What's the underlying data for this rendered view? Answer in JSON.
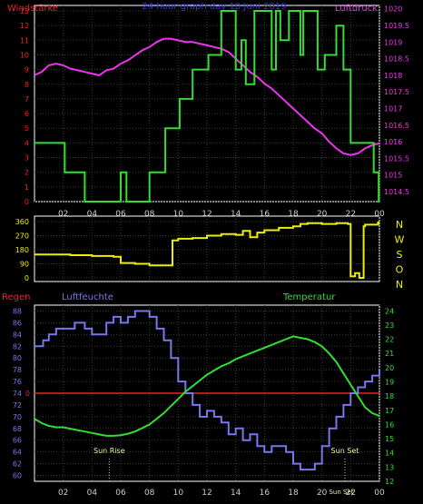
{
  "chart_data": [
    {
      "type": "line",
      "title": "24 hour graph day 10 Juni 2019",
      "left_axis_label": "Windstärke",
      "right_axis_label": "Luftdruck",
      "x_ticks": [
        "02",
        "04",
        "06",
        "08",
        "10",
        "12",
        "14",
        "16",
        "18",
        "20",
        "22",
        "00"
      ],
      "xlim": [
        0,
        24
      ],
      "left_ticks": [
        "0",
        "1",
        "2",
        "3",
        "4",
        "5",
        "6",
        "7",
        "8",
        "9",
        "10",
        "11",
        "12",
        "13"
      ],
      "left_ylim": [
        0,
        13
      ],
      "right_ticks": [
        "1014.5",
        "1015",
        "1015.5",
        "1016",
        "1016.5",
        "1017",
        "1017.5",
        "1018",
        "1018.5",
        "1019",
        "1019.5",
        "1020"
      ],
      "right_ylim": [
        1014.2,
        1020.1
      ],
      "grid": true,
      "series": [
        {
          "axis": "left",
          "color": "#33dd33",
          "step": true,
          "x": [
            0,
            2.1,
            3.5,
            5.5,
            6,
            6.4,
            7,
            8,
            9.1,
            10.1,
            11,
            12.1,
            13,
            14,
            14.4,
            14.7,
            15.3,
            15.9,
            16.5,
            16.8,
            17.1,
            17.3,
            17.7,
            18.5,
            18.7,
            19.7,
            20.2,
            21,
            21.5,
            22,
            23,
            23.6,
            23.95
          ],
          "values": [
            4,
            2,
            0,
            0,
            2,
            0,
            0,
            2,
            5,
            7,
            9,
            10,
            13,
            9,
            11,
            8,
            13,
            13,
            9,
            13,
            11,
            11,
            13,
            10,
            13,
            9,
            10,
            12,
            9,
            4,
            4,
            2,
            0
          ]
        },
        {
          "axis": "right",
          "color": "#ee33ee",
          "x": [
            0,
            0.5,
            1,
            1.5,
            2,
            2.5,
            3,
            3.5,
            4,
            4.5,
            5,
            5.5,
            6,
            6.5,
            7,
            7.5,
            8,
            8.5,
            9,
            9.5,
            10,
            10.5,
            11,
            11.5,
            12,
            12.5,
            13,
            13.5,
            14,
            14.5,
            15,
            15.5,
            16,
            16.5,
            17,
            17.5,
            18,
            18.5,
            19,
            19.5,
            20,
            20.5,
            21,
            21.5,
            22,
            22.5,
            23,
            23.5,
            24
          ],
          "values": [
            1018,
            1018.1,
            1018.3,
            1018.35,
            1018.3,
            1018.2,
            1018.15,
            1018.1,
            1018.05,
            1018.0,
            1018.15,
            1018.2,
            1018.35,
            1018.45,
            1018.6,
            1018.75,
            1018.85,
            1019.0,
            1019.1,
            1019.1,
            1019.05,
            1019.0,
            1019.0,
            1018.95,
            1018.9,
            1018.85,
            1018.8,
            1018.7,
            1018.5,
            1018.3,
            1018.1,
            1017.95,
            1017.75,
            1017.6,
            1017.4,
            1017.2,
            1017.0,
            1016.8,
            1016.6,
            1016.4,
            1016.25,
            1016.0,
            1015.8,
            1015.65,
            1015.6,
            1015.65,
            1015.8,
            1015.9,
            1015.95
          ]
        }
      ]
    },
    {
      "type": "line",
      "title": "",
      "x_ticks": [
        "02",
        "04",
        "06",
        "08",
        "10",
        "12",
        "14",
        "16",
        "18",
        "20",
        "22",
        "00"
      ],
      "xlim": [
        0,
        24
      ],
      "left_ticks": [
        "0",
        "90",
        "180",
        "270",
        "360"
      ],
      "left_ylim": [
        0,
        360
      ],
      "right_ticks": [
        "N",
        "W",
        "S",
        "O",
        "N"
      ],
      "grid": true,
      "series": [
        {
          "axis": "left",
          "color": "#eeee00",
          "step": true,
          "x": [
            0,
            2.5,
            4,
            5.5,
            6,
            7,
            8,
            9,
            9.6,
            10,
            11,
            12,
            13,
            14,
            14.5,
            15,
            15.5,
            16,
            17,
            18,
            18.5,
            19,
            20,
            21,
            21.8,
            22,
            22.3,
            22.6,
            22.9,
            23,
            23.9
          ],
          "values": [
            150,
            145,
            140,
            135,
            95,
            90,
            80,
            80,
            240,
            250,
            255,
            270,
            280,
            275,
            300,
            260,
            290,
            305,
            320,
            330,
            345,
            350,
            345,
            350,
            345,
            10,
            30,
            0,
            330,
            340,
            355
          ]
        }
      ]
    },
    {
      "type": "line",
      "title": "",
      "left_axis_label": "Regen",
      "humidity_label": "Luftfeuchte",
      "right_axis_label": "Temperatur",
      "x_ticks": [
        "02",
        "04",
        "06",
        "08",
        "10",
        "12",
        "14",
        "16",
        "18",
        "20",
        "22",
        "00"
      ],
      "xlim": [
        0,
        24
      ],
      "humidity_ticks": [
        "60",
        "62",
        "64",
        "66",
        "68",
        "70",
        "72",
        "74",
        "76",
        "78",
        "80",
        "82",
        "84",
        "86",
        "88"
      ],
      "humidity_ylim": [
        59,
        89
      ],
      "rain_tick": "0",
      "temperature_ticks": [
        "12",
        "13",
        "14",
        "15",
        "16",
        "17",
        "18",
        "19",
        "20",
        "21",
        "22",
        "23",
        "24"
      ],
      "temperature_ylim": [
        12,
        24.4
      ],
      "annotations": [
        {
          "text": "Sun Rise",
          "x": 5.2
        },
        {
          "text": "Sun Set",
          "x": 21.6
        },
        {
          "text": "Sun Set",
          "x": 21.6
        }
      ],
      "grid": true,
      "series": [
        {
          "axis": "humidity",
          "color": "#7777ee",
          "step": true,
          "x": [
            0,
            0.6,
            1,
            1.5,
            2,
            2.8,
            3.5,
            4,
            5,
            5.5,
            6,
            6.5,
            7,
            7.6,
            8,
            8.5,
            9,
            9.5,
            10,
            10.5,
            11,
            11.5,
            12,
            12.5,
            13,
            13.5,
            14,
            14.5,
            15,
            15.5,
            16,
            16.5,
            17,
            17.5,
            18,
            18.5,
            19,
            19.5,
            20,
            20.5,
            21,
            21.5,
            22,
            22.5,
            23,
            23.5,
            24
          ],
          "values": [
            82,
            83,
            84,
            85,
            85,
            86,
            85,
            84,
            86,
            87,
            86,
            87,
            88,
            88,
            87,
            85,
            83,
            80,
            76,
            74,
            72,
            70,
            71,
            70,
            69,
            67,
            68,
            66,
            67,
            65,
            64,
            65,
            65,
            64,
            62,
            61,
            61,
            62,
            65,
            68,
            70,
            72,
            74,
            75,
            76,
            77,
            78
          ]
        },
        {
          "axis": "temperature",
          "color": "#33dd33",
          "x": [
            0,
            0.5,
            1,
            1.5,
            2,
            2.5,
            3,
            3.5,
            4,
            4.5,
            5,
            5.5,
            6,
            6.5,
            7,
            7.5,
            8,
            8.5,
            9,
            9.5,
            10,
            10.5,
            11,
            11.5,
            12,
            12.5,
            13,
            13.5,
            14,
            14.5,
            15,
            15.5,
            16,
            16.5,
            17,
            17.5,
            18,
            18.5,
            19,
            19.5,
            20,
            20.5,
            21,
            21.5,
            22,
            22.5,
            23,
            23.5,
            24
          ],
          "values": [
            16.4,
            16.1,
            15.9,
            15.8,
            15.8,
            15.7,
            15.6,
            15.5,
            15.4,
            15.3,
            15.2,
            15.2,
            15.25,
            15.35,
            15.5,
            15.75,
            16.0,
            16.4,
            16.8,
            17.3,
            17.8,
            18.3,
            18.7,
            19.1,
            19.5,
            19.8,
            20.1,
            20.3,
            20.6,
            20.8,
            21.0,
            21.2,
            21.4,
            21.6,
            21.8,
            22.0,
            22.2,
            22.1,
            22.0,
            21.8,
            21.5,
            21.0,
            20.4,
            19.6,
            18.8,
            18.0,
            17.2,
            16.8,
            16.6
          ]
        },
        {
          "axis": "rain",
          "color": "#ee2222",
          "x": [
            0,
            24
          ],
          "values": [
            0,
            0
          ]
        }
      ]
    }
  ]
}
